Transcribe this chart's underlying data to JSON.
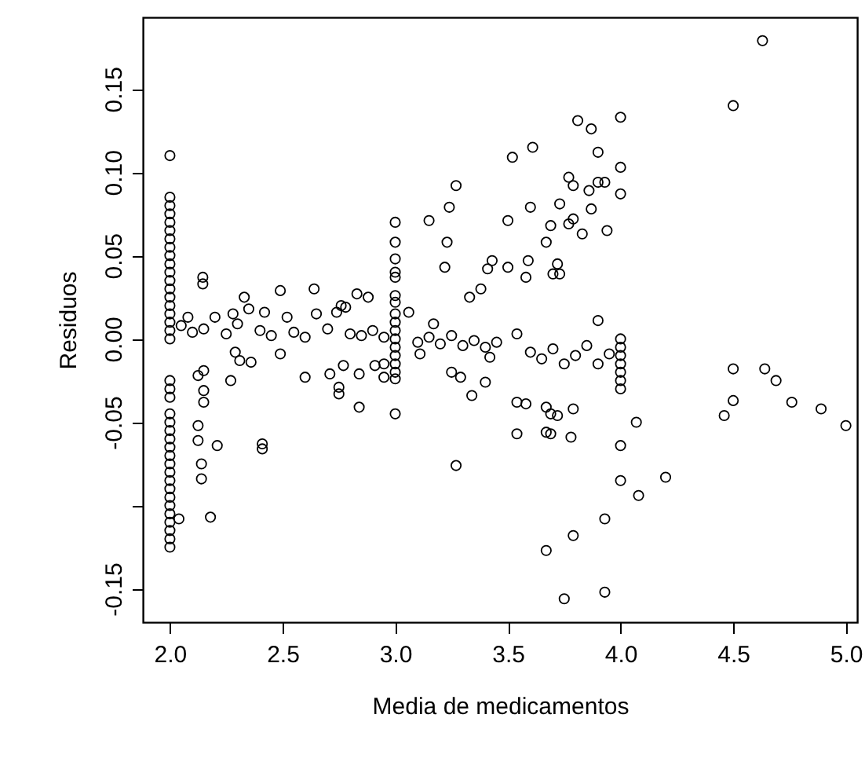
{
  "chart_data": {
    "type": "scatter",
    "xlabel": "Media de medicamentos",
    "ylabel": "Residuos",
    "x": [
      2,
      2,
      2,
      2,
      2,
      2,
      2,
      2,
      2,
      2,
      2,
      2,
      2,
      2,
      2,
      2,
      2,
      2,
      2,
      2,
      2,
      2,
      2,
      2,
      2,
      2,
      2,
      2,
      2,
      2,
      2,
      2,
      2,
      2,
      2,
      2,
      2,
      2,
      2,
      2.146,
      2.146,
      2.33,
      2.49,
      2.64,
      2.83,
      2.88,
      2.76,
      2.78,
      2.125,
      2.15,
      2.15,
      2.15,
      2.125,
      2.125,
      2.21,
      2.14,
      2.14,
      2.18,
      2.04,
      2.41,
      2.41,
      2.27,
      2.29,
      2.31,
      2.36,
      2.49,
      2.6,
      2.71,
      2.75,
      2.75,
      2.77,
      2.84,
      2.84,
      2.91,
      2.95,
      2.95,
      2.2,
      2.28,
      2.35,
      2.42,
      2.52,
      2.08,
      2.65,
      2.74,
      2.05,
      2.1,
      2.15,
      2.25,
      2.3,
      2.4,
      2.45,
      2.55,
      2.6,
      2.7,
      2.8,
      2.85,
      2.9,
      2.95,
      3,
      3,
      3,
      3,
      3,
      3,
      3,
      3,
      3,
      3,
      3,
      3,
      3,
      3,
      3,
      3,
      3,
      3.06,
      3.11,
      3.17,
      3.15,
      3.22,
      3.23,
      3.24,
      3.27,
      3.27,
      3.25,
      3.29,
      3.34,
      3.4,
      3.42,
      3.33,
      3.38,
      3.41,
      3.43,
      3.5,
      3.5,
      3.52,
      3.1,
      3.15,
      3.2,
      3.25,
      3.3,
      3.35,
      3.4,
      3.45,
      3.61,
      3.58,
      3.59,
      3.6,
      3.67,
      3.69,
      3.7,
      3.73,
      3.72,
      3.73,
      3.77,
      3.79,
      3.77,
      3.79,
      3.81,
      3.83,
      3.87,
      3.87,
      3.86,
      3.9,
      3.9,
      3.93,
      3.94,
      3.9,
      4,
      4,
      4,
      4.5,
      4.63,
      4.5,
      4.64,
      4.69,
      4.76,
      4.89,
      5,
      4.5,
      4.46,
      4.07,
      4,
      4,
      4.08,
      4.2,
      3.93,
      3.79,
      3.67,
      3.75,
      3.93,
      3.54,
      3.54,
      3.58,
      3.67,
      3.69,
      3.72,
      3.67,
      3.69,
      3.78,
      3.79,
      3.54,
      3.6,
      3.65,
      3.7,
      3.75,
      3.8,
      3.85,
      3.9,
      3.95,
      4,
      4,
      4,
      4,
      4,
      4,
      4
    ],
    "values": [
      0.11,
      0.085,
      0.08,
      0.075,
      0.07,
      0.065,
      0.06,
      0.055,
      0.05,
      0.045,
      0.04,
      0.035,
      0.03,
      0.025,
      0.02,
      0.015,
      0.01,
      0.005,
      0,
      -0.025,
      -0.03,
      -0.035,
      -0.045,
      -0.05,
      -0.055,
      -0.06,
      -0.065,
      -0.07,
      -0.075,
      -0.08,
      -0.085,
      -0.09,
      -0.095,
      -0.1,
      -0.105,
      -0.11,
      -0.115,
      -0.12,
      -0.125,
      0.037,
      0.033,
      0.025,
      0.029,
      0.03,
      0.027,
      0.025,
      0.02,
      0.019,
      -0.022,
      -0.019,
      -0.031,
      -0.038,
      -0.052,
      -0.061,
      -0.064,
      -0.075,
      -0.084,
      -0.107,
      -0.108,
      -0.063,
      -0.066,
      -0.025,
      -0.008,
      -0.013,
      -0.014,
      -0.009,
      -0.023,
      -0.021,
      -0.029,
      -0.033,
      -0.016,
      -0.021,
      -0.041,
      -0.016,
      -0.023,
      -0.015,
      0.013,
      0.015,
      0.018,
      0.016,
      0.013,
      0.013,
      0.015,
      0.016,
      0.008,
      0.004,
      0.006,
      0.003,
      0.009,
      0.005,
      0.002,
      0.004,
      0.001,
      0.006,
      0.003,
      0.002,
      0.005,
      0.001,
      0.07,
      0.058,
      0.048,
      0.04,
      0.037,
      0.026,
      0.022,
      0.015,
      0.01,
      0.005,
      0,
      -0.005,
      -0.01,
      -0.015,
      -0.02,
      -0.024,
      -0.045,
      0.016,
      -0.009,
      0.009,
      0.071,
      0.043,
      0.058,
      0.079,
      0.092,
      -0.076,
      -0.02,
      -0.023,
      -0.034,
      -0.026,
      -0.011,
      0.025,
      0.03,
      0.042,
      0.047,
      0.071,
      0.043,
      0.109,
      -0.002,
      0.001,
      -0.003,
      0.002,
      -0.004,
      -0.001,
      -0.005,
      -0.002,
      0.115,
      0.037,
      0.047,
      0.079,
      0.058,
      0.068,
      0.039,
      0.039,
      0.045,
      0.081,
      0.097,
      0.092,
      0.069,
      0.072,
      0.131,
      0.063,
      0.126,
      0.078,
      0.089,
      0.112,
      0.094,
      0.094,
      0.065,
      0.011,
      0.133,
      0.103,
      0.087,
      0.14,
      0.179,
      -0.018,
      -0.018,
      -0.025,
      -0.038,
      -0.042,
      -0.052,
      -0.037,
      -0.046,
      -0.05,
      -0.064,
      -0.085,
      -0.094,
      -0.083,
      -0.108,
      -0.118,
      -0.127,
      -0.156,
      -0.152,
      -0.057,
      -0.038,
      -0.039,
      -0.041,
      -0.045,
      -0.046,
      -0.056,
      -0.057,
      -0.059,
      -0.042,
      0.003,
      -0.008,
      -0.012,
      -0.006,
      -0.015,
      -0.01,
      -0.004,
      -0.015,
      -0.009,
      0,
      -0.005,
      -0.01,
      -0.015,
      -0.02,
      -0.025,
      -0.03
    ],
    "color": "#000000",
    "marker": "circle",
    "grid": false,
    "xlim": [
      1.88,
      5.05
    ],
    "xticks": [
      {
        "value": 2,
        "label": "2.0"
      },
      2.5,
      {
        "value": 3,
        "label": "3.0"
      },
      3.5,
      {
        "value": 4,
        "label": "4.0"
      },
      4.5,
      {
        "value": 5,
        "label": "5.0"
      }
    ],
    "ylim": [
      -0.17,
      0.193
    ],
    "yticks": [
      -0.15,
      {
        "value": -0.1,
        "label": null
      },
      -0.05,
      {
        "value": 0,
        "label": "0.00"
      },
      0.05,
      {
        "value": 0.1,
        "label": "0.10"
      },
      0.15
    ]
  }
}
